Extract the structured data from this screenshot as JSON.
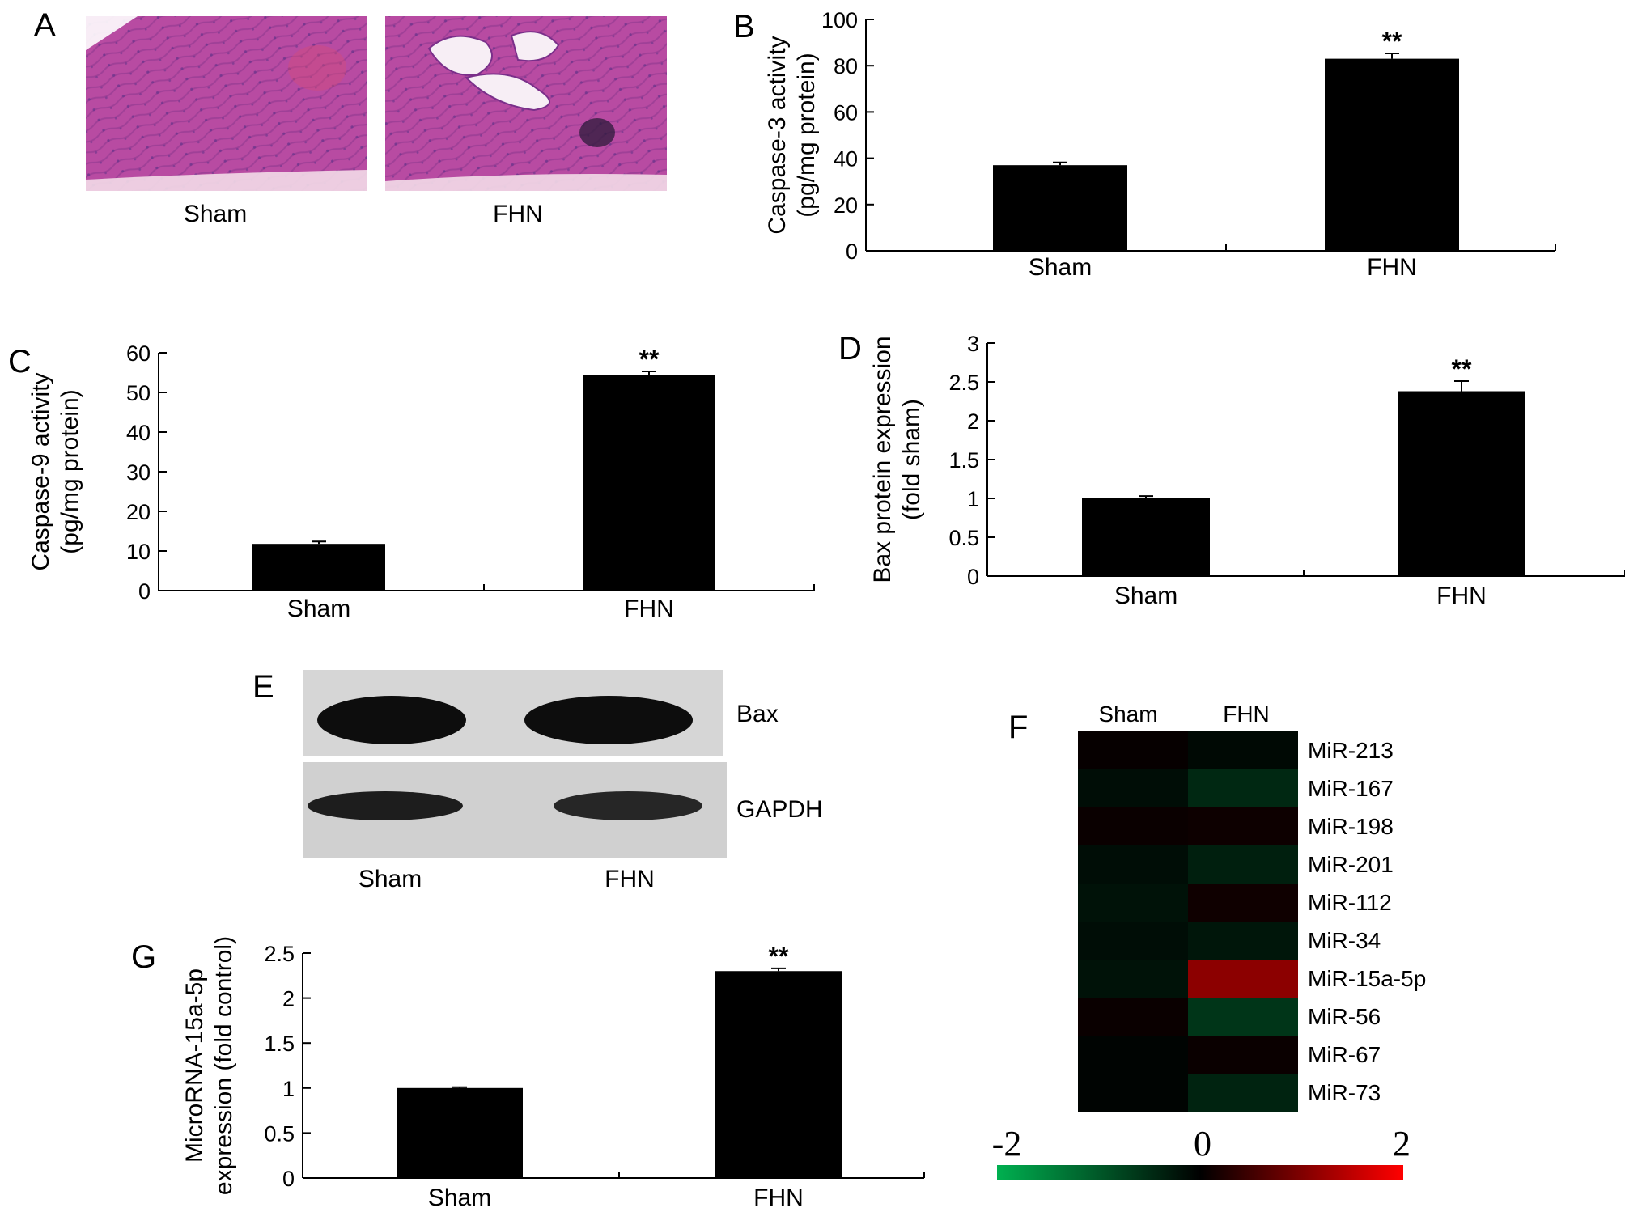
{
  "panels": {
    "A": {
      "letter": "A",
      "labels": [
        "Sham",
        "FHN"
      ]
    },
    "E": {
      "letter": "E",
      "bands": [
        "Bax",
        "GAPDH"
      ],
      "lanes": [
        "Sham",
        "FHN"
      ]
    },
    "F": {
      "letter": "F"
    }
  },
  "chart_data": [
    {
      "id": "B",
      "letter": "B",
      "type": "bar",
      "categories": [
        "Sham",
        "FHN"
      ],
      "values": [
        37,
        83
      ],
      "errors": [
        1.2,
        2.3
      ],
      "significance": [
        "",
        "**"
      ],
      "ylabel": [
        "Caspase-3 activity",
        "(pg/mg protein)"
      ],
      "ylim": [
        0,
        100
      ],
      "yticks": [
        0,
        20,
        40,
        60,
        80,
        100
      ]
    },
    {
      "id": "C",
      "letter": "C",
      "type": "bar",
      "categories": [
        "Sham",
        "FHN"
      ],
      "values": [
        11.8,
        54.3
      ],
      "errors": [
        0.6,
        1.0
      ],
      "significance": [
        "",
        "**"
      ],
      "ylabel": [
        "Caspase-9 activity",
        "(pg/mg protein)"
      ],
      "ylim": [
        0,
        60
      ],
      "yticks": [
        0,
        10,
        20,
        30,
        40,
        50,
        60
      ]
    },
    {
      "id": "D",
      "letter": "D",
      "type": "bar",
      "categories": [
        "Sham",
        "FHN"
      ],
      "values": [
        1.0,
        2.38
      ],
      "errors": [
        0.03,
        0.13
      ],
      "significance": [
        "",
        "**"
      ],
      "ylabel": [
        "Bax protein expression",
        "(fold sham)"
      ],
      "ylim": [
        0,
        3
      ],
      "yticks": [
        0,
        0.5,
        1,
        1.5,
        2,
        2.5,
        3
      ]
    },
    {
      "id": "G",
      "letter": "G",
      "type": "bar",
      "categories": [
        "Sham",
        "FHN"
      ],
      "values": [
        1.0,
        2.3
      ],
      "errors": [
        0.01,
        0.03
      ],
      "significance": [
        "",
        "**"
      ],
      "ylabel": [
        "MicroRNA-15a-5p",
        "expression (fold control)"
      ],
      "ylim": [
        0,
        2.5
      ],
      "yticks": [
        0,
        0.5,
        1,
        1.5,
        2,
        2.5
      ]
    },
    {
      "id": "F",
      "letter": "F",
      "type": "heatmap",
      "columns": [
        "Sham",
        "FHN"
      ],
      "rows": [
        "MiR-213",
        "MiR-167",
        "MiR-198",
        "MiR-201",
        "MiR-112",
        "MiR-34",
        "MiR-15a-5p",
        "MiR-56",
        "MiR-67",
        "MiR-73"
      ],
      "values": [
        [
          0.05,
          -0.1
        ],
        [
          -0.15,
          -0.45
        ],
        [
          0.08,
          0.1
        ],
        [
          -0.15,
          -0.35
        ],
        [
          -0.2,
          0.12
        ],
        [
          -0.15,
          -0.25
        ],
        [
          -0.2,
          1.1
        ],
        [
          0.08,
          -0.6
        ],
        [
          -0.05,
          0.08
        ],
        [
          -0.05,
          -0.4
        ]
      ],
      "colorbar": {
        "min": -2,
        "max": 2,
        "ticks": [
          "-2",
          "0",
          "2"
        ],
        "colors": {
          "low": "#00b050",
          "mid": "#000000",
          "high": "#ff0000"
        }
      }
    }
  ]
}
